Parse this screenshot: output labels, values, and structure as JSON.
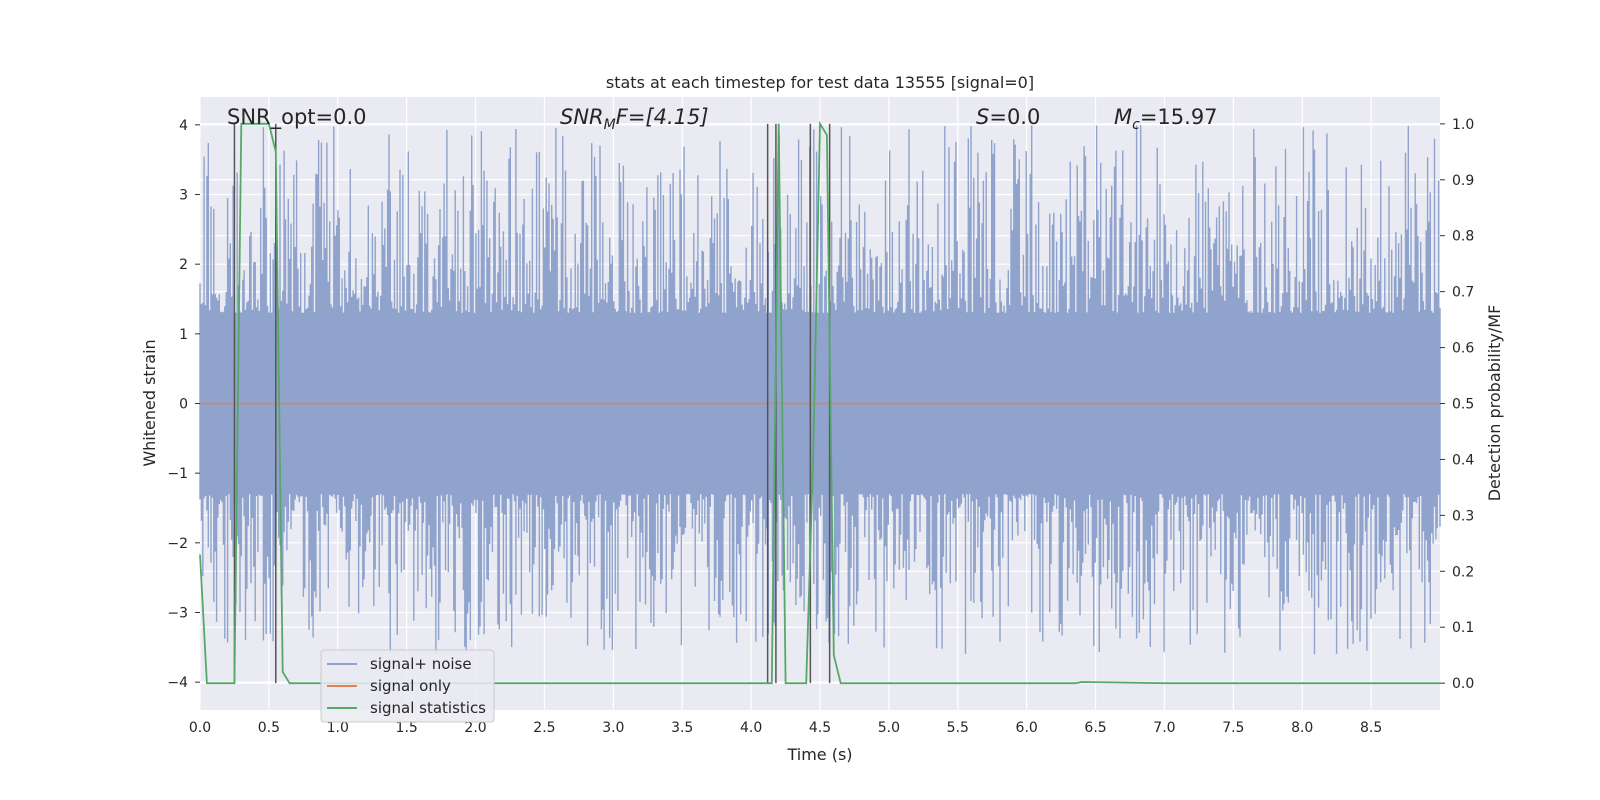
{
  "chart_data": {
    "type": "line",
    "title": "stats at each timestep for test data 13555 [signal=0]",
    "xlabel": "Time (s)",
    "ylabel": "Whitened strain",
    "y2label": "Detection probability/MF",
    "xlim": [
      0.0,
      9.0
    ],
    "ylim": [
      -4.4,
      4.4
    ],
    "y2lim": [
      -0.048,
      1.048
    ],
    "xticks": [
      "0.0",
      "0.5",
      "1.0",
      "1.5",
      "2.0",
      "2.5",
      "3.0",
      "3.5",
      "4.0",
      "4.5",
      "5.0",
      "5.5",
      "6.0",
      "6.5",
      "7.0",
      "7.5",
      "8.0",
      "8.5"
    ],
    "yticks": [
      "4",
      "3",
      "2",
      "1",
      "0",
      "−1",
      "−2",
      "−3",
      "−4"
    ],
    "y2ticks": [
      "1.0",
      "0.9",
      "0.8",
      "0.7",
      "0.6",
      "0.5",
      "0.4",
      "0.3",
      "0.2",
      "0.1",
      "0.0"
    ],
    "grid": true,
    "legend_position": "lower-left",
    "annotations": {
      "snr_opt": "SNR_opt=0.0",
      "snr_mf_sym": "SNR",
      "snr_mf_sub": "M",
      "snr_mf_rest": "F=[4.15]",
      "s_sym": "S",
      "s_rest": "=0.0",
      "mc_sym": "M",
      "mc_sub": "c",
      "mc_rest": "=15.97"
    },
    "series": [
      {
        "name": "signal+ noise",
        "color": "#8fa3cc",
        "description_kind": "noise band",
        "envelope_upper_range": [
          1.3,
          4.0
        ],
        "envelope_lower_range": [
          -3.6,
          -1.3
        ]
      },
      {
        "name": "signal only",
        "color": "#dd8452",
        "x": [
          0.0,
          9.0
        ],
        "y": [
          0.0,
          0.0
        ]
      },
      {
        "name": "signal statistics",
        "color": "#55a868",
        "axis": "right",
        "x": [
          0.0,
          0.05,
          0.1,
          0.2,
          0.25,
          0.3,
          0.35,
          0.4,
          0.45,
          0.5,
          0.55,
          0.6,
          0.65,
          0.7,
          0.75,
          0.8,
          1.0,
          2.0,
          3.0,
          4.0,
          4.05,
          4.1,
          4.15,
          4.2,
          4.25,
          4.3,
          4.35,
          4.4,
          4.45,
          4.5,
          4.55,
          4.6,
          4.65,
          4.7,
          5.0,
          6.0,
          6.3,
          6.35,
          6.4,
          7.0,
          8.0,
          9.0
        ],
        "y": [
          0.23,
          0.0,
          0.0,
          0.0,
          0.0,
          1.0,
          1.0,
          1.0,
          1.0,
          1.0,
          0.95,
          0.02,
          0.0,
          0.0,
          0.0,
          0.0,
          0.0,
          0.0,
          0.0,
          0.0,
          0.0,
          0.0,
          0.0,
          1.0,
          0.0,
          0.0,
          0.0,
          0.0,
          0.4,
          1.0,
          0.98,
          0.05,
          0.0,
          0.0,
          0.0,
          0.0,
          0.0,
          0.0,
          0.002,
          0.0,
          0.0,
          0.0
        ]
      }
    ],
    "vertical_markers": {
      "color": "#555555",
      "x": [
        0.25,
        0.55,
        4.12,
        4.18,
        4.43,
        4.57
      ]
    }
  }
}
